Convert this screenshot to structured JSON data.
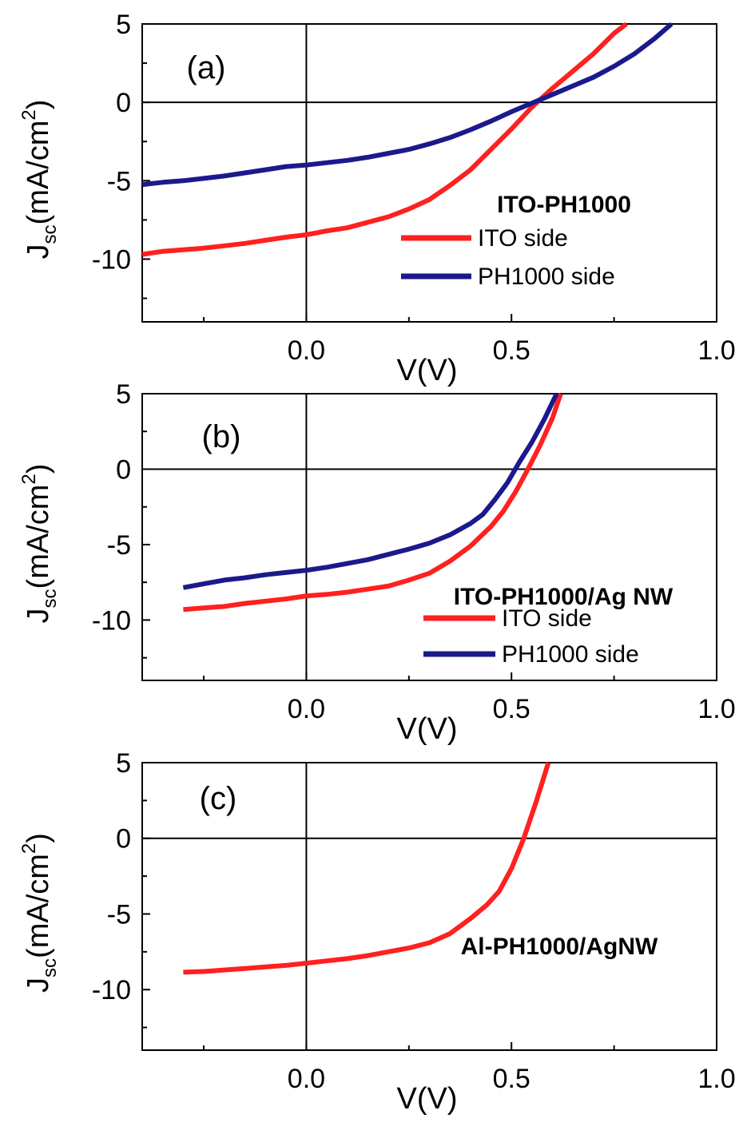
{
  "chart_data": [
    {
      "type": "line",
      "panel_label": "(a)",
      "xlabel": "V(V)",
      "ylabel": "J",
      "ylabel_sub": "sc",
      "ylabel_units": "(mA/cm",
      "ylabel_sup": "2",
      "ylabel_close": ")",
      "xlim": [
        -0.4,
        1.0
      ],
      "ylim": [
        -14,
        5
      ],
      "xticks": [
        "0.0",
        "0.5",
        "1.0"
      ],
      "yticks": [
        "5",
        "0",
        "-5",
        "-10"
      ],
      "legend_title": "ITO-PH1000",
      "legend_placement": "lower-right",
      "series": [
        {
          "name": "ITO side",
          "color": "#ff2020",
          "x": [
            -0.4,
            -0.35,
            -0.3,
            -0.25,
            -0.2,
            -0.15,
            -0.1,
            -0.05,
            0.0,
            0.05,
            0.1,
            0.15,
            0.2,
            0.25,
            0.3,
            0.35,
            0.4,
            0.45,
            0.5,
            0.55,
            0.6,
            0.65,
            0.7,
            0.75,
            0.78
          ],
          "y": [
            -9.7,
            -9.5,
            -9.4,
            -9.3,
            -9.15,
            -9.0,
            -8.8,
            -8.6,
            -8.45,
            -8.2,
            -8.0,
            -7.65,
            -7.3,
            -6.8,
            -6.2,
            -5.3,
            -4.3,
            -3.0,
            -1.7,
            -0.3,
            0.9,
            2.0,
            3.1,
            4.4,
            5.0
          ]
        },
        {
          "name": "PH1000 side",
          "color": "#1a1a8c",
          "x": [
            -0.4,
            -0.35,
            -0.3,
            -0.25,
            -0.2,
            -0.15,
            -0.1,
            -0.05,
            0.0,
            0.05,
            0.1,
            0.15,
            0.2,
            0.25,
            0.3,
            0.35,
            0.4,
            0.45,
            0.5,
            0.55,
            0.6,
            0.65,
            0.7,
            0.75,
            0.8,
            0.85,
            0.89
          ],
          "y": [
            -5.25,
            -5.1,
            -5.0,
            -4.85,
            -4.7,
            -4.5,
            -4.3,
            -4.1,
            -4.0,
            -3.85,
            -3.7,
            -3.5,
            -3.25,
            -3.0,
            -2.65,
            -2.25,
            -1.75,
            -1.2,
            -0.6,
            -0.05,
            0.5,
            1.05,
            1.6,
            2.3,
            3.1,
            4.1,
            5.0
          ]
        }
      ]
    },
    {
      "type": "line",
      "panel_label": "(b)",
      "xlabel": "V(V)",
      "ylabel": "J",
      "ylabel_sub": "sc",
      "ylabel_units": "(mA/cm",
      "ylabel_sup": "2",
      "ylabel_close": ")",
      "xlim": [
        -0.4,
        1.0
      ],
      "ylim": [
        -14,
        5
      ],
      "xticks": [
        "0.0",
        "0.5",
        "1.0"
      ],
      "yticks": [
        "5",
        "0",
        "-5",
        "-10"
      ],
      "legend_title": "ITO-PH1000/Ag NW",
      "legend_placement": "lower-right",
      "series": [
        {
          "name": "ITO side",
          "color": "#ff2020",
          "x": [
            -0.3,
            -0.25,
            -0.2,
            -0.15,
            -0.1,
            -0.05,
            0.0,
            0.05,
            0.1,
            0.15,
            0.2,
            0.25,
            0.3,
            0.35,
            0.4,
            0.45,
            0.48,
            0.51,
            0.54,
            0.57,
            0.6,
            0.62
          ],
          "y": [
            -9.3,
            -9.2,
            -9.1,
            -8.9,
            -8.75,
            -8.6,
            -8.4,
            -8.3,
            -8.15,
            -7.95,
            -7.75,
            -7.35,
            -6.9,
            -6.1,
            -5.1,
            -3.8,
            -2.8,
            -1.5,
            0.0,
            1.6,
            3.4,
            5.0
          ]
        },
        {
          "name": "PH1000 side",
          "color": "#1a1a8c",
          "x": [
            -0.3,
            -0.25,
            -0.2,
            -0.15,
            -0.1,
            -0.05,
            0.0,
            0.05,
            0.1,
            0.15,
            0.2,
            0.25,
            0.3,
            0.35,
            0.4,
            0.43,
            0.46,
            0.49,
            0.52,
            0.55,
            0.58,
            0.61
          ],
          "y": [
            -7.85,
            -7.6,
            -7.35,
            -7.2,
            -7.0,
            -6.85,
            -6.7,
            -6.5,
            -6.25,
            -6.0,
            -5.65,
            -5.3,
            -4.9,
            -4.35,
            -3.6,
            -3.0,
            -2.0,
            -0.9,
            0.5,
            1.8,
            3.3,
            5.0
          ]
        }
      ]
    },
    {
      "type": "line",
      "panel_label": "(c)",
      "xlabel": "V(V)",
      "ylabel": "J",
      "ylabel_sub": "sc",
      "ylabel_units": "(mA/cm",
      "ylabel_sup": "2",
      "ylabel_close": ")",
      "xlim": [
        -0.4,
        1.0
      ],
      "ylim": [
        -14,
        5
      ],
      "xticks": [
        "0.0",
        "0.5",
        "1.0"
      ],
      "yticks": [
        "5",
        "0",
        "-5",
        "-10"
      ],
      "annotation": "Al-PH1000/AgNW",
      "series": [
        {
          "name": "",
          "color": "#ff2020",
          "x": [
            -0.3,
            -0.25,
            -0.2,
            -0.15,
            -0.1,
            -0.05,
            0.0,
            0.05,
            0.1,
            0.15,
            0.2,
            0.25,
            0.3,
            0.35,
            0.4,
            0.44,
            0.47,
            0.5,
            0.53,
            0.56,
            0.59
          ],
          "y": [
            -8.85,
            -8.8,
            -8.7,
            -8.6,
            -8.5,
            -8.4,
            -8.25,
            -8.1,
            -7.95,
            -7.75,
            -7.5,
            -7.25,
            -6.9,
            -6.3,
            -5.3,
            -4.4,
            -3.5,
            -2.0,
            0.0,
            2.4,
            5.0
          ]
        }
      ]
    }
  ]
}
